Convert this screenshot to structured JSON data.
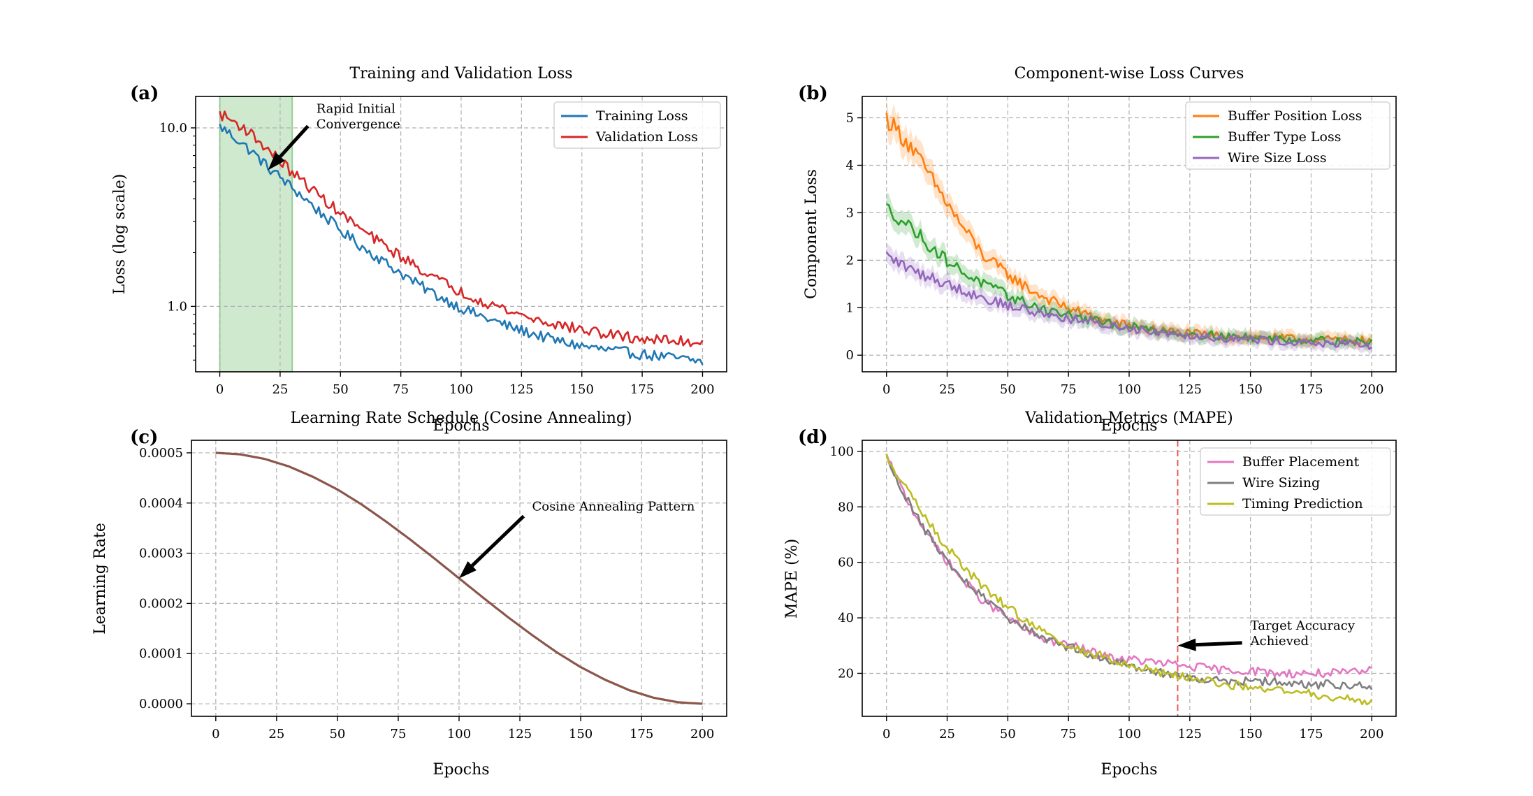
{
  "chart_data": [
    {
      "panel": "(a)",
      "type": "line",
      "title": "Training and Validation Loss",
      "xlabel": "Epochs",
      "ylabel": "Loss (log scale)",
      "yscale": "log",
      "xlim": [
        -10,
        210
      ],
      "ylim": [
        0.43,
        15
      ],
      "xticks": [
        0,
        25,
        50,
        75,
        100,
        125,
        150,
        175,
        200
      ],
      "yticks": [
        1.0,
        10.0
      ],
      "ytick_labels": [
        "1.0",
        "10.0"
      ],
      "grid": true,
      "legend_position": "top-right",
      "series": [
        {
          "name": "Training Loss",
          "color": "#1f77b4",
          "x": [
            0,
            10,
            20,
            30,
            40,
            50,
            60,
            70,
            80,
            90,
            100,
            110,
            120,
            130,
            140,
            150,
            160,
            170,
            180,
            190,
            200
          ],
          "y": [
            10.2,
            8.0,
            6.0,
            4.6,
            3.5,
            2.65,
            2.1,
            1.7,
            1.38,
            1.15,
            0.98,
            0.86,
            0.77,
            0.7,
            0.64,
            0.6,
            0.57,
            0.55,
            0.53,
            0.51,
            0.49
          ]
        },
        {
          "name": "Validation Loss",
          "color": "#d62728",
          "x": [
            0,
            10,
            20,
            30,
            40,
            50,
            60,
            70,
            80,
            90,
            100,
            110,
            120,
            130,
            140,
            150,
            160,
            170,
            180,
            190,
            200
          ],
          "y": [
            12.0,
            10.0,
            7.5,
            5.6,
            4.3,
            3.3,
            2.6,
            2.1,
            1.72,
            1.42,
            1.2,
            1.06,
            0.94,
            0.85,
            0.79,
            0.74,
            0.7,
            0.67,
            0.65,
            0.64,
            0.63
          ]
        }
      ],
      "shaded_region": {
        "x": [
          0,
          30
        ],
        "color": "#2ca02c"
      },
      "annotation": {
        "text": [
          "Rapid Initial",
          "Convergence"
        ],
        "point": [
          20,
          5.8
        ],
        "text_pos": [
          40,
          11.0
        ]
      }
    },
    {
      "panel": "(b)",
      "type": "line",
      "title": "Component-wise Loss Curves",
      "xlabel": "Epochs",
      "ylabel": "Component Loss",
      "xlim": [
        -10,
        210
      ],
      "ylim": [
        -0.35,
        5.45
      ],
      "xticks": [
        0,
        25,
        50,
        75,
        100,
        125,
        150,
        175,
        200
      ],
      "yticks": [
        0,
        1,
        2,
        3,
        4,
        5
      ],
      "grid": true,
      "legend_position": "top-right",
      "series": [
        {
          "name": "Buffer Position Loss",
          "color": "#ff7f0e",
          "x": [
            0,
            10,
            20,
            30,
            40,
            50,
            60,
            70,
            80,
            90,
            100,
            110,
            120,
            130,
            140,
            150,
            160,
            170,
            180,
            190,
            200
          ],
          "y": [
            5.0,
            4.4,
            3.6,
            2.8,
            2.1,
            1.7,
            1.35,
            1.1,
            0.9,
            0.72,
            0.62,
            0.55,
            0.48,
            0.43,
            0.4,
            0.38,
            0.36,
            0.34,
            0.33,
            0.32,
            0.3
          ]
        },
        {
          "name": "Buffer Type Loss",
          "color": "#2ca02c",
          "x": [
            0,
            10,
            20,
            30,
            40,
            50,
            60,
            70,
            80,
            90,
            100,
            110,
            120,
            130,
            140,
            150,
            160,
            170,
            180,
            190,
            200
          ],
          "y": [
            3.1,
            2.7,
            2.2,
            1.8,
            1.5,
            1.25,
            1.05,
            0.9,
            0.78,
            0.68,
            0.6,
            0.53,
            0.47,
            0.43,
            0.4,
            0.37,
            0.35,
            0.33,
            0.31,
            0.29,
            0.27
          ]
        },
        {
          "name": "Wire Size Loss",
          "color": "#9467bd",
          "x": [
            0,
            10,
            20,
            30,
            40,
            50,
            60,
            70,
            80,
            90,
            100,
            110,
            120,
            130,
            140,
            150,
            160,
            170,
            180,
            190,
            200
          ],
          "y": [
            2.1,
            1.8,
            1.6,
            1.4,
            1.2,
            1.05,
            0.92,
            0.82,
            0.72,
            0.64,
            0.57,
            0.5,
            0.45,
            0.4,
            0.36,
            0.33,
            0.3,
            0.27,
            0.24,
            0.22,
            0.2
          ]
        }
      ]
    },
    {
      "panel": "(c)",
      "type": "line",
      "title": "Learning Rate Schedule (Cosine Annealing)",
      "xlabel": "Epochs",
      "ylabel": "Learning Rate",
      "xlim": [
        -10,
        210
      ],
      "ylim": [
        -2.5e-05,
        0.000525
      ],
      "xticks": [
        0,
        25,
        50,
        75,
        100,
        125,
        150,
        175,
        200
      ],
      "yticks": [
        0,
        0.0001,
        0.0002,
        0.0003,
        0.0004,
        0.0005
      ],
      "ytick_labels": [
        "0.0000",
        "0.0001",
        "0.0002",
        "0.0003",
        "0.0004",
        "0.0005"
      ],
      "grid": true,
      "series": [
        {
          "name": "Learning Rate",
          "color": "#8c564b",
          "x": [
            0,
            10,
            20,
            30,
            40,
            50,
            60,
            70,
            80,
            90,
            100,
            110,
            120,
            130,
            140,
            150,
            160,
            170,
            180,
            190,
            200
          ],
          "y": [
            0.0005,
            0.000497,
            0.000488,
            0.000473,
            0.000452,
            0.000427,
            0.000397,
            0.000363,
            0.000327,
            0.000289,
            0.00025,
            0.000211,
            0.000173,
            0.000137,
            0.000103,
            7.3e-05,
            4.8e-05,
            2.7e-05,
            1.2e-05,
            3e-06,
            0.0
          ]
        }
      ],
      "annotation": {
        "text": [
          "Cosine Annealing Pattern"
        ],
        "point": [
          100,
          0.00025
        ],
        "text_pos": [
          130,
          0.000385
        ]
      }
    },
    {
      "panel": "(d)",
      "type": "line",
      "title": "Validation Metrics (MAPE)",
      "xlabel": "Epochs",
      "ylabel": "MAPE (%)",
      "xlim": [
        -10,
        210
      ],
      "ylim": [
        4.5,
        104
      ],
      "xticks": [
        0,
        25,
        50,
        75,
        100,
        125,
        150,
        175,
        200
      ],
      "yticks": [
        20,
        40,
        60,
        80,
        100
      ],
      "grid": true,
      "legend_position": "top-right",
      "series": [
        {
          "name": "Buffer Placement",
          "color": "#e377c2",
          "x": [
            0,
            10,
            20,
            30,
            40,
            50,
            60,
            70,
            80,
            90,
            100,
            110,
            120,
            130,
            140,
            150,
            160,
            170,
            180,
            190,
            200
          ],
          "y": [
            98,
            80,
            66,
            55,
            46,
            40,
            34,
            31,
            29,
            26,
            25,
            24,
            23,
            22,
            21,
            21,
            20,
            20,
            20,
            20,
            21
          ]
        },
        {
          "name": "Wire Sizing",
          "color": "#7f7f7f",
          "x": [
            0,
            10,
            20,
            30,
            40,
            50,
            60,
            70,
            80,
            90,
            100,
            110,
            120,
            130,
            140,
            150,
            160,
            170,
            180,
            190,
            200
          ],
          "y": [
            98,
            80,
            66,
            55,
            47,
            40,
            35,
            31,
            28,
            25,
            23,
            21,
            19,
            18,
            17,
            17,
            17,
            16,
            16,
            16,
            15
          ]
        },
        {
          "name": "Timing Prediction",
          "color": "#bcbd22",
          "x": [
            0,
            10,
            20,
            30,
            40,
            50,
            60,
            70,
            80,
            90,
            100,
            110,
            120,
            130,
            140,
            150,
            160,
            170,
            180,
            190,
            200
          ],
          "y": [
            98,
            84,
            71,
            60,
            51,
            44,
            37,
            32,
            28,
            26,
            23,
            21,
            19,
            18,
            16,
            15,
            14,
            13,
            12,
            11,
            10
          ]
        }
      ],
      "vline": {
        "x": 120,
        "color": "#e8585a"
      },
      "annotation": {
        "text": [
          "Target Accuracy",
          "Achieved"
        ],
        "point": [
          120,
          30
        ],
        "text_pos": [
          150,
          33
        ]
      }
    }
  ]
}
